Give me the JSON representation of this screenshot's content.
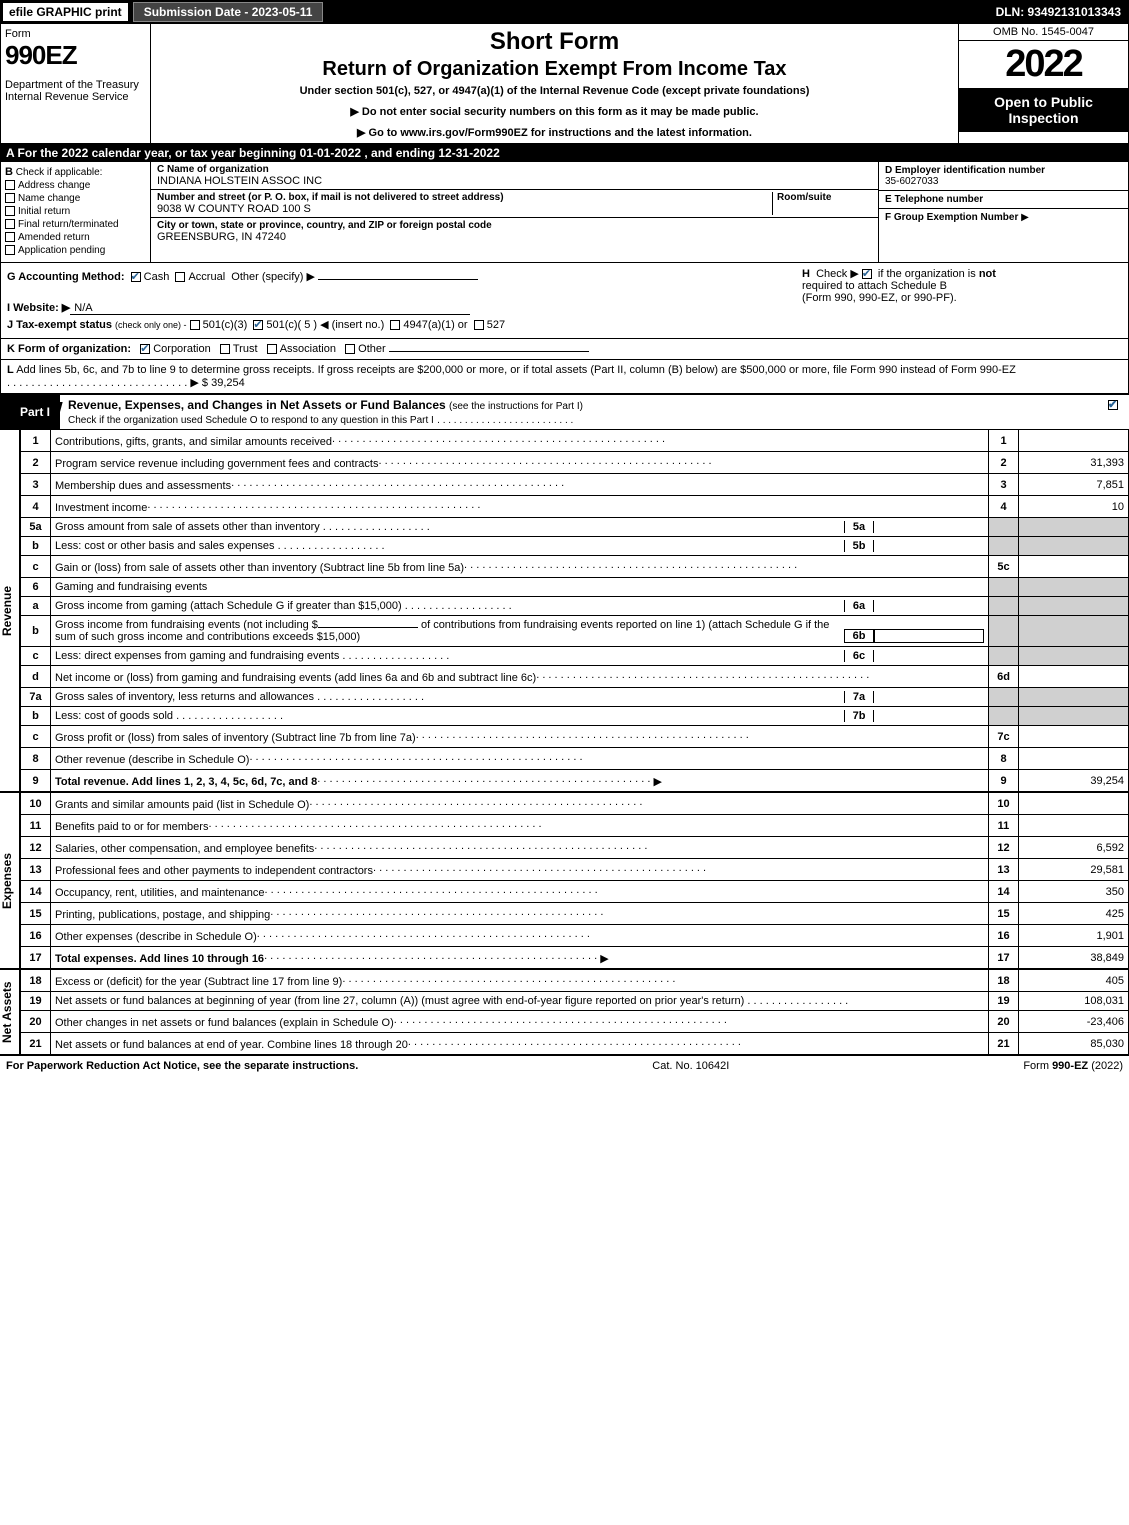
{
  "topbar": {
    "efile": "efile GRAPHIC print",
    "subdate": "Submission Date - 2023-05-11",
    "dln": "DLN: 93492131013343"
  },
  "hdr": {
    "form": "Form",
    "f990": "990EZ",
    "dept": "Department of the Treasury",
    "irs": "Internal Revenue Service",
    "short": "Short Form",
    "ret": "Return of Organization Exempt From Income Tax",
    "under": "Under section 501(c), 527, or 4947(a)(1) of the Internal Revenue Code (except private foundations)",
    "note1": "▶ Do not enter social security numbers on this form as it may be made public.",
    "note2": "▶ Go to www.irs.gov/Form990EZ for instructions and the latest information.",
    "omb": "OMB No. 1545-0047",
    "year": "2022",
    "open": "Open to Public Inspection"
  },
  "rowA": "A  For the 2022 calendar year, or tax year beginning 01-01-2022 , and ending 12-31-2022",
  "boxB": {
    "lbl": "B",
    "title": "Check if applicable:",
    "c1": "Address change",
    "c2": "Name change",
    "c3": "Initial return",
    "c4": "Final return/terminated",
    "c5": "Amended return",
    "c6": "Application pending"
  },
  "boxC": {
    "cLbl": "C",
    "nameLbl": "Name of organization",
    "name": "INDIANA HOLSTEIN ASSOC INC",
    "addrLbl": "Number and street (or P. O. box, if mail is not delivered to street address)",
    "roomLbl": "Room/suite",
    "addr": "9038 W COUNTY ROAD 100 S",
    "cityLbl": "City or town, state or province, country, and ZIP or foreign postal code",
    "city": "GREENSBURG, IN  47240"
  },
  "boxD": {
    "einLbl": "D Employer identification number",
    "ein": "35-6027033",
    "telLbl": "E Telephone number",
    "tel": "",
    "grpLbl": "F Group Exemption Number",
    "grpArrow": "▶"
  },
  "rowG": {
    "lbl": "G Accounting Method:",
    "cash": "Cash",
    "accrual": "Accrual",
    "other": "Other (specify) ▶"
  },
  "rowH": {
    "lbl": "H",
    "txt1": "Check ▶",
    "txt2": "if the organization is",
    "not": "not",
    "txt3": "required to attach Schedule B",
    "txt4": "(Form 990, 990-EZ, or 990-PF)."
  },
  "rowI": {
    "lbl": "I Website: ▶",
    "val": "N/A"
  },
  "rowJ": {
    "lbl": "J Tax-exempt status",
    "sub": "(check only one) -",
    "o1": "501(c)(3)",
    "o2": "501(c)( 5 ) ◀ (insert no.)",
    "o3": "4947(a)(1) or",
    "o4": "527"
  },
  "rowK": {
    "lbl": "K Form of organization:",
    "o1": "Corporation",
    "o2": "Trust",
    "o3": "Association",
    "o4": "Other"
  },
  "rowL": {
    "lbl": "L",
    "txt": "Add lines 5b, 6c, and 7b to line 9 to determine gross receipts. If gross receipts are $200,000 or more, or if total assets (Part II, column (B) below) are $500,000 or more, file Form 990 instead of Form 990-EZ",
    "arrow": "▶",
    "amt": "$ 39,254"
  },
  "part1": {
    "lbl": "Part I",
    "title": "Revenue, Expenses, and Changes in Net Assets or Fund Balances",
    "sub": "(see the instructions for Part I)",
    "check": "Check if the organization used Schedule O to respond to any question in this Part I"
  },
  "sections": {
    "rev": "Revenue",
    "exp": "Expenses",
    "net": "Net Assets"
  },
  "lines": {
    "1": {
      "n": "1",
      "d": "Contributions, gifts, grants, and similar amounts received",
      "r": "1",
      "a": ""
    },
    "2": {
      "n": "2",
      "d": "Program service revenue including government fees and contracts",
      "r": "2",
      "a": "31,393"
    },
    "3": {
      "n": "3",
      "d": "Membership dues and assessments",
      "r": "3",
      "a": "7,851"
    },
    "4": {
      "n": "4",
      "d": "Investment income",
      "r": "4",
      "a": "10"
    },
    "5a": {
      "n": "5a",
      "d": "Gross amount from sale of assets other than inventory",
      "s": "5a",
      "sa": ""
    },
    "5b": {
      "n": "b",
      "d": "Less: cost or other basis and sales expenses",
      "s": "5b",
      "sa": ""
    },
    "5c": {
      "n": "c",
      "d": "Gain or (loss) from sale of assets other than inventory (Subtract line 5b from line 5a)",
      "r": "5c",
      "a": ""
    },
    "6": {
      "n": "6",
      "d": "Gaming and fundraising events"
    },
    "6a": {
      "n": "a",
      "d": "Gross income from gaming (attach Schedule G if greater than $15,000)",
      "s": "6a",
      "sa": ""
    },
    "6b": {
      "n": "b",
      "d1": "Gross income from fundraising events (not including $",
      "d2": "of contributions from fundraising events reported on line 1) (attach Schedule G if the sum of such gross income and contributions exceeds $15,000)",
      "s": "6b",
      "sa": ""
    },
    "6c": {
      "n": "c",
      "d": "Less: direct expenses from gaming and fundraising events",
      "s": "6c",
      "sa": ""
    },
    "6d": {
      "n": "d",
      "d": "Net income or (loss) from gaming and fundraising events (add lines 6a and 6b and subtract line 6c)",
      "r": "6d",
      "a": ""
    },
    "7a": {
      "n": "7a",
      "d": "Gross sales of inventory, less returns and allowances",
      "s": "7a",
      "sa": ""
    },
    "7b": {
      "n": "b",
      "d": "Less: cost of goods sold",
      "s": "7b",
      "sa": ""
    },
    "7c": {
      "n": "c",
      "d": "Gross profit or (loss) from sales of inventory (Subtract line 7b from line 7a)",
      "r": "7c",
      "a": ""
    },
    "8": {
      "n": "8",
      "d": "Other revenue (describe in Schedule O)",
      "r": "8",
      "a": ""
    },
    "9": {
      "n": "9",
      "d": "Total revenue. Add lines 1, 2, 3, 4, 5c, 6d, 7c, and 8",
      "r": "9",
      "a": "39,254",
      "b": true,
      "ar": true
    },
    "10": {
      "n": "10",
      "d": "Grants and similar amounts paid (list in Schedule O)",
      "r": "10",
      "a": ""
    },
    "11": {
      "n": "11",
      "d": "Benefits paid to or for members",
      "r": "11",
      "a": ""
    },
    "12": {
      "n": "12",
      "d": "Salaries, other compensation, and employee benefits",
      "r": "12",
      "a": "6,592"
    },
    "13": {
      "n": "13",
      "d": "Professional fees and other payments to independent contractors",
      "r": "13",
      "a": "29,581"
    },
    "14": {
      "n": "14",
      "d": "Occupancy, rent, utilities, and maintenance",
      "r": "14",
      "a": "350"
    },
    "15": {
      "n": "15",
      "d": "Printing, publications, postage, and shipping",
      "r": "15",
      "a": "425"
    },
    "16": {
      "n": "16",
      "d": "Other expenses (describe in Schedule O)",
      "r": "16",
      "a": "1,901"
    },
    "17": {
      "n": "17",
      "d": "Total expenses. Add lines 10 through 16",
      "r": "17",
      "a": "38,849",
      "b": true,
      "ar": true
    },
    "18": {
      "n": "18",
      "d": "Excess or (deficit) for the year (Subtract line 17 from line 9)",
      "r": "18",
      "a": "405"
    },
    "19": {
      "n": "19",
      "d": "Net assets or fund balances at beginning of year (from line 27, column (A)) (must agree with end-of-year figure reported on prior year's return)",
      "r": "19",
      "a": "108,031"
    },
    "20": {
      "n": "20",
      "d": "Other changes in net assets or fund balances (explain in Schedule O)",
      "r": "20",
      "a": "-23,406"
    },
    "21": {
      "n": "21",
      "d": "Net assets or fund balances at end of year. Combine lines 18 through 20",
      "r": "21",
      "a": "85,030"
    }
  },
  "footer": {
    "left": "For Paperwork Reduction Act Notice, see the separate instructions.",
    "mid": "Cat. No. 10642I",
    "right": "Form 990-EZ (2022)",
    "rightb": "990-EZ"
  }
}
